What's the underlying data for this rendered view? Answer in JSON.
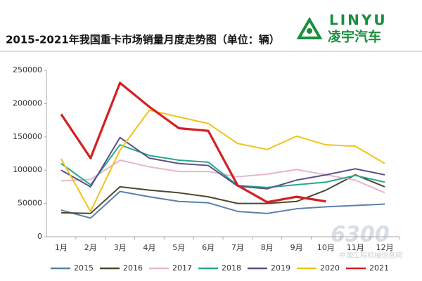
{
  "chart_data": {
    "type": "line",
    "title": "2015-2021年我国重卡市场销量月度走势图（单位：辆）",
    "categories": [
      "1月",
      "2月",
      "3月",
      "4月",
      "5月",
      "6月",
      "7月",
      "8月",
      "9月",
      "10月",
      "11月",
      "12月"
    ],
    "series": [
      {
        "name": "2015",
        "color": "#5b80a8",
        "values": [
          40000,
          28000,
          68000,
          60000,
          53000,
          51000,
          38000,
          35000,
          42000,
          45000,
          47000,
          49000
        ]
      },
      {
        "name": "2016",
        "color": "#4a4a2c",
        "values": [
          36000,
          35000,
          75000,
          70000,
          66000,
          60000,
          50000,
          50000,
          53000,
          70000,
          93000,
          75000
        ]
      },
      {
        "name": "2017",
        "color": "#e8b6cc",
        "values": [
          84000,
          86000,
          115000,
          105000,
          98000,
          98000,
          90000,
          94000,
          101000,
          93000,
          85000,
          66000
        ]
      },
      {
        "name": "2018",
        "color": "#26a88c",
        "values": [
          110000,
          78000,
          138000,
          122000,
          115000,
          112000,
          77000,
          74000,
          78000,
          82000,
          92000,
          82000
        ]
      },
      {
        "name": "2019",
        "color": "#5e4e8c",
        "values": [
          100000,
          75000,
          149000,
          118000,
          110000,
          107000,
          76000,
          72000,
          85000,
          93000,
          102000,
          93000
        ]
      },
      {
        "name": "2020",
        "color": "#f2c318",
        "values": [
          117000,
          38000,
          130000,
          190000,
          180000,
          170000,
          140000,
          131000,
          151000,
          138000,
          136000,
          110000
        ]
      },
      {
        "name": "2021",
        "color": "#d42020",
        "values": [
          184000,
          118000,
          231000,
          195000,
          163000,
          159000,
          77000,
          52000,
          60000,
          53000,
          null,
          null
        ]
      }
    ],
    "ylim": [
      0,
      250000
    ],
    "yticks": [
      0,
      50000,
      100000,
      150000,
      200000,
      250000
    ],
    "grid": false
  },
  "brand": {
    "name": "LINYU",
    "subtitle": "凌宇汽车"
  },
  "watermark": {
    "number": "6300",
    "site": "中国工程机械信息网"
  }
}
